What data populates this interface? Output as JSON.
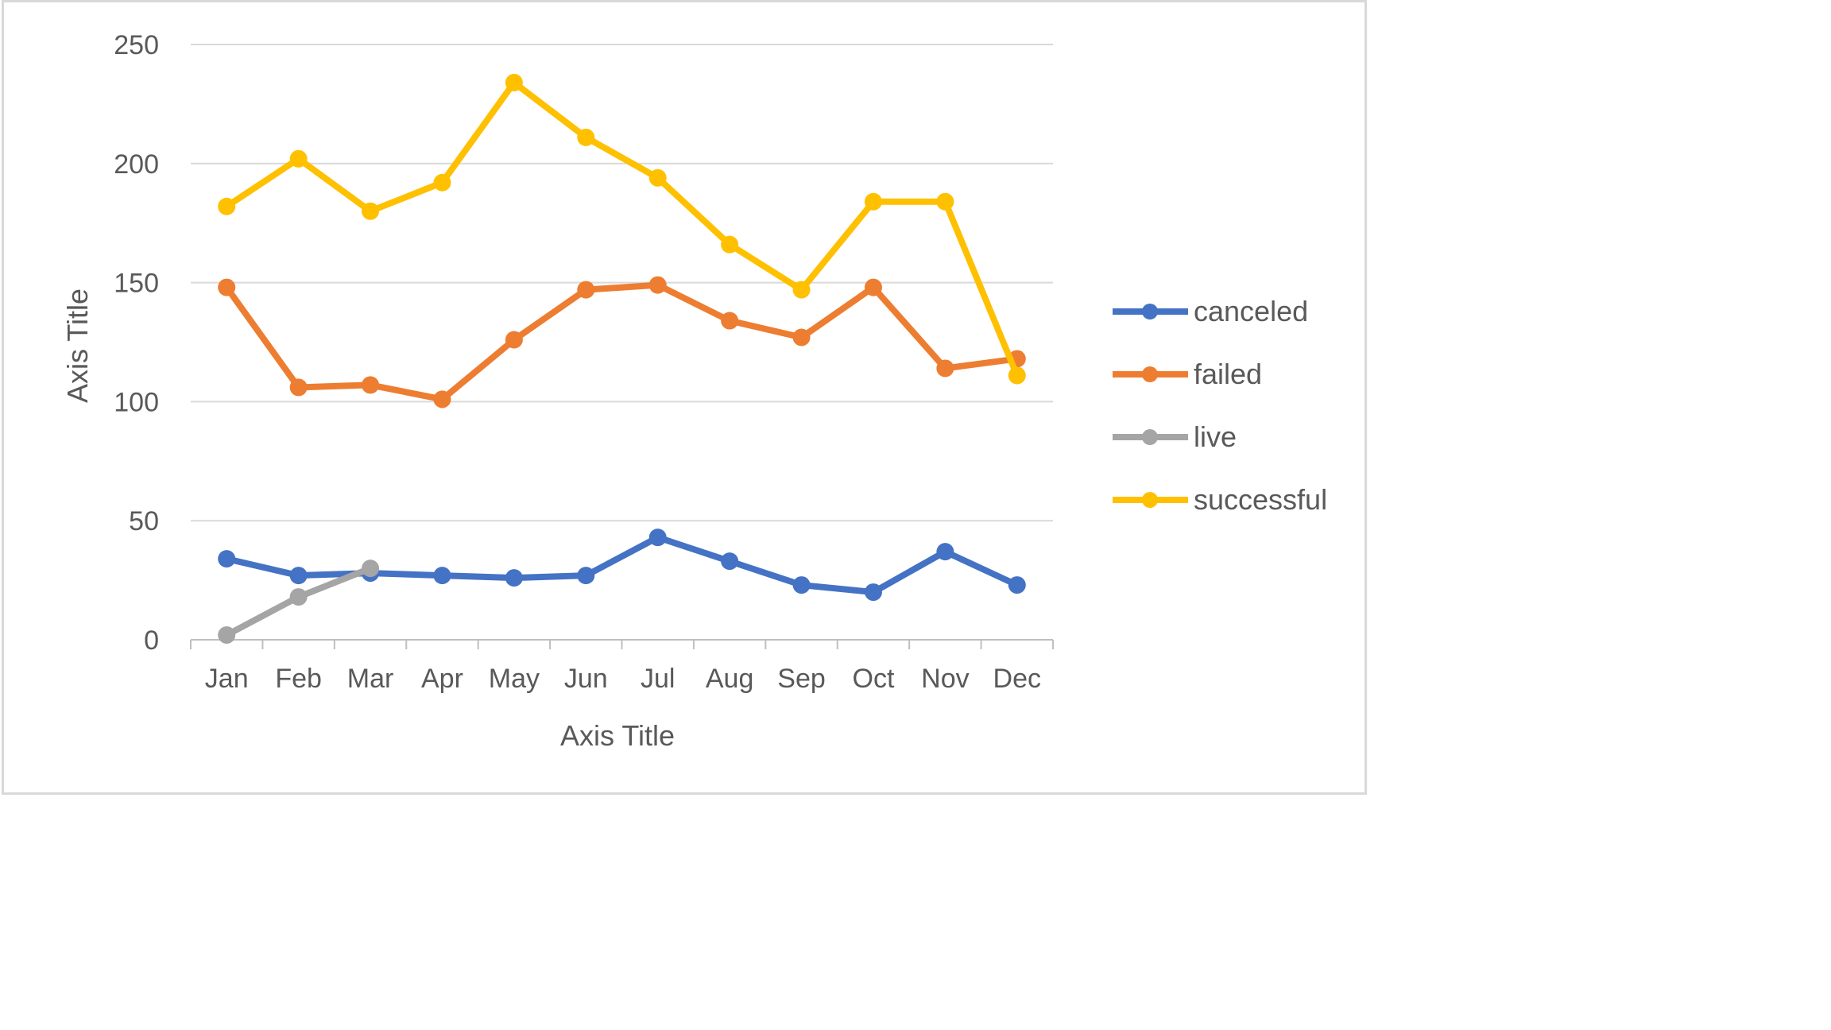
{
  "chart_data": {
    "type": "line",
    "categories": [
      "Jan",
      "Feb",
      "Mar",
      "Apr",
      "May",
      "Jun",
      "Jul",
      "Aug",
      "Sep",
      "Oct",
      "Nov",
      "Dec"
    ],
    "series": [
      {
        "name": "canceled",
        "color": "#4472c4",
        "values": [
          34,
          27,
          28,
          27,
          26,
          27,
          43,
          33,
          23,
          20,
          37,
          23
        ]
      },
      {
        "name": "failed",
        "color": "#ed7d31",
        "values": [
          148,
          106,
          107,
          101,
          126,
          147,
          149,
          134,
          127,
          148,
          114,
          118
        ]
      },
      {
        "name": "live",
        "color": "#a5a5a5",
        "values": [
          2,
          18,
          30,
          null,
          null,
          null,
          null,
          null,
          null,
          null,
          null,
          null
        ]
      },
      {
        "name": "successful",
        "color": "#ffc000",
        "values": [
          182,
          202,
          180,
          192,
          234,
          211,
          194,
          166,
          147,
          184,
          184,
          111
        ]
      }
    ],
    "xlabel": "Axis Title",
    "ylabel": "Axis Title",
    "ylim": [
      0,
      250
    ],
    "yticks": [
      0,
      50,
      100,
      150,
      200,
      250
    ],
    "grid": true,
    "legend": "right"
  }
}
